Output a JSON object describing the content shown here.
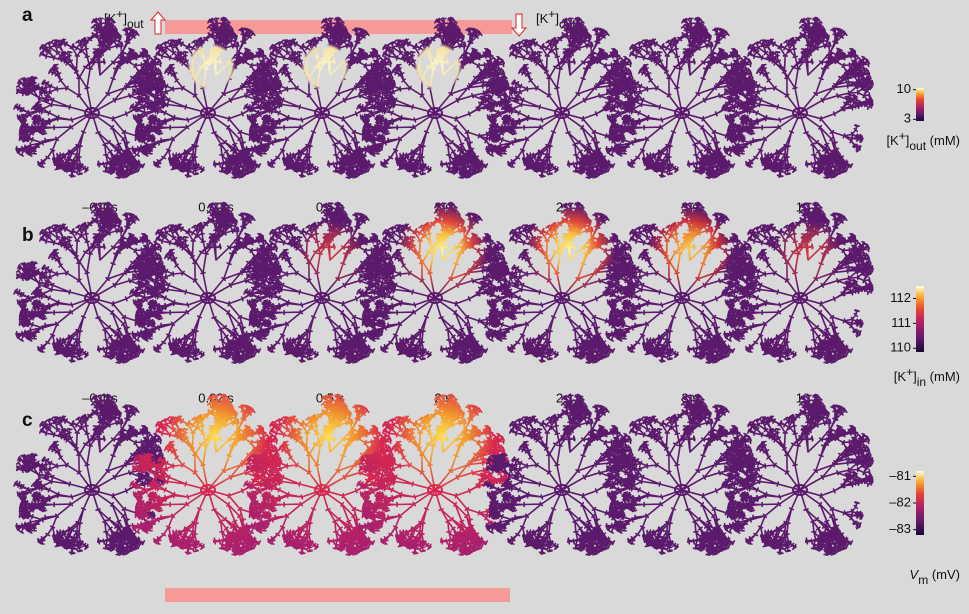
{
  "stimulus": {
    "start_label": [
      "[K",
      "+",
      "]",
      "out"
    ],
    "end_label": [
      "[K",
      "+",
      "]",
      "out"
    ]
  },
  "panels": [
    {
      "label": "a",
      "times": [
        "–0.1 s",
        "0.02 s",
        "0.5 s",
        "2 s",
        "2.1 s",
        "3 s",
        "10 s"
      ],
      "colorbar": {
        "lim": [
          2.6,
          10.4
        ],
        "ticks": [
          10,
          3
        ],
        "label": [
          "[K",
          "+",
          "]",
          "out",
          " (mM)"
        ]
      }
    },
    {
      "label": "b",
      "times": [
        "–0.1 s",
        "0.02 s",
        "0.5 s",
        "2 s",
        "2.1 s",
        "3 s",
        "10 s"
      ],
      "colorbar": {
        "lim": [
          109.85,
          112.5
        ],
        "ticks": [
          112,
          111,
          110
        ],
        "label": [
          "[K",
          "+",
          "]",
          "in",
          " (mM)"
        ]
      }
    },
    {
      "label": "c",
      "colorbar": {
        "lim": [
          -83.2,
          -80.8
        ],
        "ticks": [
          {
            "value": -81,
            "label": "–81"
          },
          {
            "value": -82,
            "label": "–82"
          },
          {
            "value": -83,
            "label": "–83"
          }
        ],
        "label": [
          "V",
          "m",
          " (mV)"
        ]
      }
    }
  ]
}
